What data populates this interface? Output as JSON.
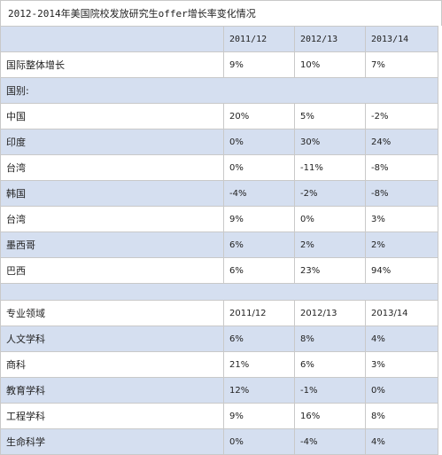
{
  "title": "2012-2014年美国院校发放研究生offer增长率变化情况",
  "header": {
    "c0": "",
    "c1": "2011/12",
    "c2": "2012/13",
    "c3": "2013/14"
  },
  "overall": {
    "label": "国际整体增长",
    "v1": "9%",
    "v2": "10%",
    "v3": "7%"
  },
  "country_section_label": "国别:",
  "countries": [
    {
      "label": "中国",
      "v1": "20%",
      "v2": "5%",
      "v3": "-2%"
    },
    {
      "label": "印度",
      "v1": "0%",
      "v2": "30%",
      "v3": "24%"
    },
    {
      "label": "台湾",
      "v1": "0%",
      "v2": "-11%",
      "v3": "-8%"
    },
    {
      "label": "韩国",
      "v1": "-4%",
      "v2": "-2%",
      "v3": "-8%"
    },
    {
      "label": "台湾",
      "v1": "9%",
      "v2": "0%",
      "v3": "3%"
    },
    {
      "label": "墨西哥",
      "v1": "6%",
      "v2": "2%",
      "v3": "2%"
    },
    {
      "label": "巴西",
      "v1": "6%",
      "v2": "23%",
      "v3": "94%"
    }
  ],
  "field_header": {
    "label": "专业领域",
    "c1": "2011/12",
    "c2": "2012/13",
    "c3": "2013/14"
  },
  "fields": [
    {
      "label": "人文学科",
      "v1": "6%",
      "v2": "8%",
      "v3": "4%"
    },
    {
      "label": "商科",
      "v1": "21%",
      "v2": "6%",
      "v3": "3%"
    },
    {
      "label": "教育学科",
      "v1": "12%",
      "v2": "-1%",
      "v3": "0%"
    },
    {
      "label": "工程学科",
      "v1": "9%",
      "v2": "16%",
      "v3": "8%"
    },
    {
      "label": "生命科学",
      "v1": "0%",
      "v2": "-4%",
      "v3": "4%"
    }
  ]
}
